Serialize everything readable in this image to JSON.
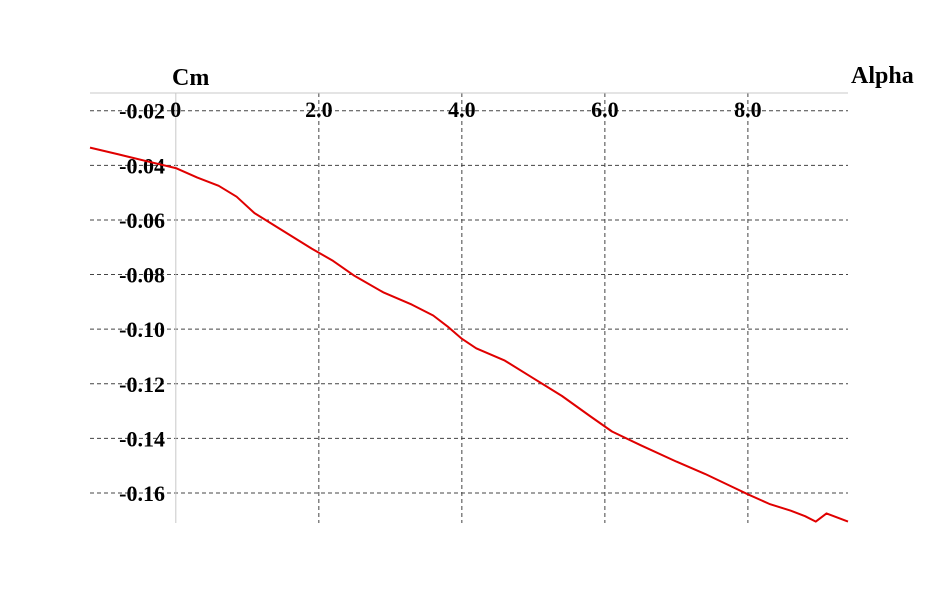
{
  "chart_data": {
    "type": "line",
    "xlabel": "Alpha",
    "ylabel": "Cm",
    "xlim": [
      -1.2,
      9.4
    ],
    "ylim": [
      -0.171,
      -0.0135
    ],
    "x_ticks": [
      0,
      2,
      4,
      6,
      8
    ],
    "x_tick_labels": [
      "0",
      "2.0",
      "4.0",
      "6.0",
      "8.0"
    ],
    "y_ticks": [
      -0.02,
      -0.04,
      -0.06,
      -0.08,
      -0.1,
      -0.12,
      -0.14,
      -0.16
    ],
    "y_tick_labels": [
      "-0.02",
      "-0.04",
      "-0.06",
      "-0.08",
      "-0.10",
      "-0.12",
      "-0.14",
      "-0.16"
    ],
    "grid": true,
    "grid_style": "dashed",
    "line_color": "#e00000",
    "series": [
      {
        "x": [
          -1.2,
          -0.8,
          -0.4,
          0.0,
          0.3,
          0.6,
          0.85,
          1.1,
          1.5,
          1.9,
          2.2,
          2.5,
          2.9,
          3.3,
          3.6,
          3.8,
          4.0,
          4.2,
          4.6,
          5.0,
          5.4,
          5.8,
          6.1,
          6.5,
          7.0,
          7.4,
          7.8,
          8.0,
          8.3,
          8.6,
          8.8,
          8.95,
          9.1,
          9.4
        ],
        "y": [
          -0.0335,
          -0.036,
          -0.0385,
          -0.041,
          -0.0445,
          -0.0475,
          -0.0515,
          -0.0575,
          -0.064,
          -0.0705,
          -0.075,
          -0.0805,
          -0.0865,
          -0.091,
          -0.095,
          -0.099,
          -0.1035,
          -0.107,
          -0.1115,
          -0.118,
          -0.1245,
          -0.132,
          -0.1375,
          -0.1425,
          -0.1485,
          -0.153,
          -0.158,
          -0.1605,
          -0.164,
          -0.1665,
          -0.1685,
          -0.1705,
          -0.1675,
          -0.1705
        ]
      }
    ]
  }
}
